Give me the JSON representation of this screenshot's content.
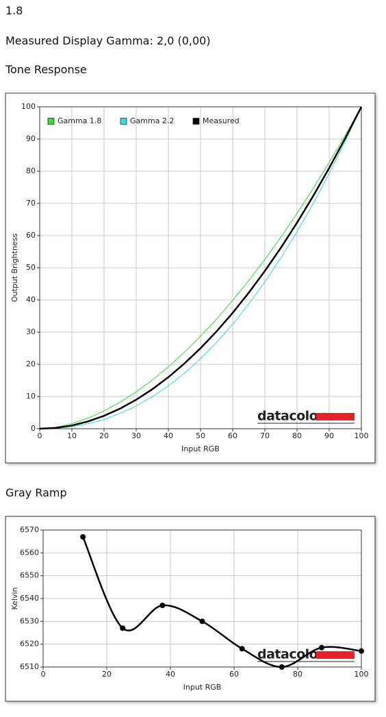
{
  "header": {
    "title": "1.8",
    "measured": "Measured Display Gamma: 2,0 (0,00)"
  },
  "sections": [
    "Tone Response",
    "Gray Ramp"
  ],
  "chart_data": [
    {
      "type": "line",
      "xlabel": "Input RGB",
      "ylabel": "Output Brightness",
      "watermark": "datacolor",
      "xlim": [
        0,
        100
      ],
      "ylim": [
        0,
        100
      ],
      "xticks": [
        0,
        10,
        20,
        30,
        40,
        50,
        60,
        70,
        80,
        90,
        100
      ],
      "yticks": [
        0,
        10,
        20,
        30,
        40,
        50,
        60,
        70,
        80,
        90,
        100
      ],
      "grid": true,
      "legend": "top-left",
      "smooth": false,
      "markers": false,
      "x": [
        0,
        5,
        10,
        15,
        20,
        25,
        30,
        35,
        40,
        45,
        50,
        55,
        60,
        65,
        70,
        75,
        80,
        85,
        90,
        95,
        100
      ],
      "series": [
        {
          "name": "Gamma 1.8",
          "color": "#33dd33",
          "width": 1,
          "values": [
            0,
            0.46,
            1.58,
            3.29,
            5.52,
            8.25,
            11.45,
            15.11,
            19.22,
            23.76,
            28.72,
            34.09,
            39.87,
            46.05,
            52.62,
            59.58,
            66.92,
            74.64,
            82.72,
            91.18,
            100
          ]
        },
        {
          "name": "Gamma 2.2",
          "color": "#33dddd",
          "width": 1,
          "values": [
            0,
            0.14,
            0.63,
            1.54,
            2.9,
            4.74,
            7.07,
            9.93,
            13.32,
            17.26,
            21.76,
            26.84,
            32.5,
            38.76,
            45.62,
            53.11,
            61.21,
            69.94,
            79.31,
            89.33,
            100
          ]
        },
        {
          "name": "Measured",
          "color": "#000000",
          "width": 2.5,
          "values": [
            0,
            0.25,
            1,
            2.25,
            4,
            6.25,
            9,
            12.25,
            16,
            20.25,
            25,
            30.25,
            36,
            42.25,
            49,
            56.25,
            64,
            72.25,
            81,
            90.25,
            100
          ]
        }
      ]
    },
    {
      "type": "line",
      "xlabel": "Input RGB",
      "ylabel": "Kelvin",
      "watermark": "datacolor",
      "xlim": [
        0,
        100
      ],
      "ylim": [
        6510,
        6570
      ],
      "xticks": [
        0,
        20,
        40,
        60,
        80,
        100
      ],
      "yticks": [
        6510,
        6520,
        6530,
        6540,
        6550,
        6560,
        6570
      ],
      "grid": true,
      "smooth": true,
      "markers": true,
      "x": [
        12.5,
        25,
        37.5,
        50,
        62.5,
        75,
        87.5,
        100
      ],
      "series": [
        {
          "color": "#000000",
          "width": 2.5,
          "values": [
            6567,
            6527,
            6537,
            6530,
            6518,
            6510,
            6518.5,
            6517
          ]
        }
      ]
    }
  ]
}
